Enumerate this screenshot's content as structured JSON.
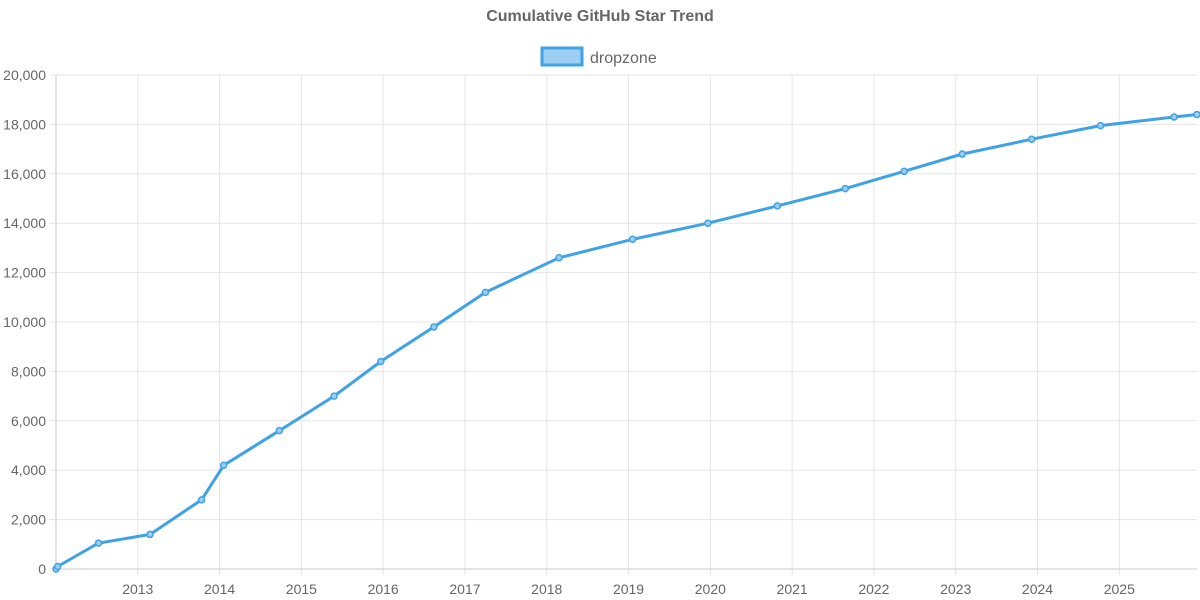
{
  "chart_data": {
    "type": "line",
    "title": "Cumulative GitHub Star Trend",
    "xlabel": "",
    "ylabel": "",
    "legend_position": "top-center",
    "grid": true,
    "line_color": "#3ea2e5",
    "fill_color": "#9ccff2",
    "xlim": [
      2012.0,
      2025.95
    ],
    "ylim": [
      0,
      20000
    ],
    "x_ticks": [
      "2013",
      "2014",
      "2015",
      "2016",
      "2017",
      "2018",
      "2019",
      "2020",
      "2021",
      "2022",
      "2023",
      "2024",
      "2025"
    ],
    "y_ticks": [
      "0",
      "2,000",
      "4,000",
      "6,000",
      "8,000",
      "10,000",
      "12,000",
      "14,000",
      "16,000",
      "18,000",
      "20,000"
    ],
    "series": [
      {
        "name": "dropzone",
        "points": [
          {
            "x": 2012.0,
            "y": 0
          },
          {
            "x": 2012.02,
            "y": 100
          },
          {
            "x": 2012.52,
            "y": 1050
          },
          {
            "x": 2013.15,
            "y": 1400
          },
          {
            "x": 2013.78,
            "y": 2800
          },
          {
            "x": 2014.05,
            "y": 4200
          },
          {
            "x": 2014.73,
            "y": 5600
          },
          {
            "x": 2015.4,
            "y": 7000
          },
          {
            "x": 2015.97,
            "y": 8400
          },
          {
            "x": 2016.62,
            "y": 9800
          },
          {
            "x": 2017.25,
            "y": 11200
          },
          {
            "x": 2018.15,
            "y": 12600
          },
          {
            "x": 2019.05,
            "y": 13350
          },
          {
            "x": 2019.97,
            "y": 14000
          },
          {
            "x": 2020.82,
            "y": 14700
          },
          {
            "x": 2021.65,
            "y": 15400
          },
          {
            "x": 2022.37,
            "y": 16100
          },
          {
            "x": 2023.08,
            "y": 16800
          },
          {
            "x": 2023.93,
            "y": 17400
          },
          {
            "x": 2024.77,
            "y": 17950
          },
          {
            "x": 2025.67,
            "y": 18300
          },
          {
            "x": 2025.95,
            "y": 18400
          }
        ]
      }
    ]
  }
}
